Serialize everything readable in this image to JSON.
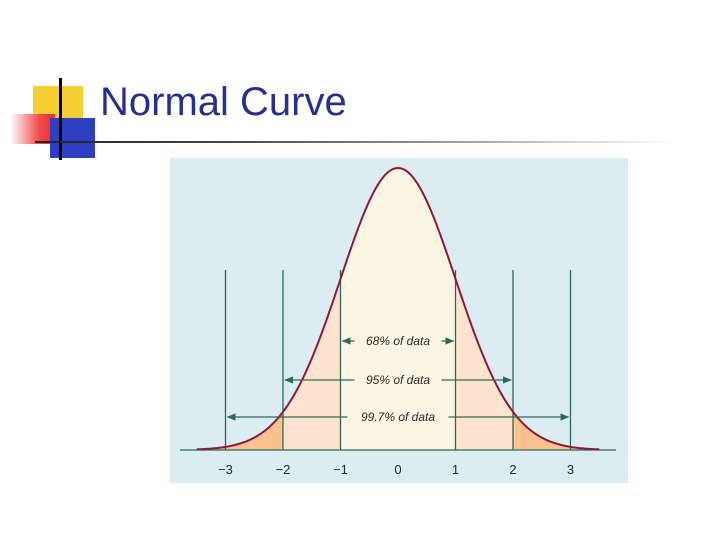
{
  "slide": {
    "title": "Normal Curve"
  },
  "diagram": {
    "bands": [
      {
        "label": "68% of data",
        "from": -1,
        "to": 1
      },
      {
        "label": "95% of data",
        "from": -2,
        "to": 2
      },
      {
        "label": "99.7% of data",
        "from": -3,
        "to": 3
      }
    ],
    "ticks": [
      "−3",
      "−2",
      "−1",
      "0",
      "1",
      "2",
      "3"
    ],
    "colors": {
      "background": "#dcecf3",
      "curve": "#8b1a3a",
      "inner_fill": "#fdf5e3",
      "middle_fill": "#fde3d0",
      "outer_fill": "#fbc28f",
      "lines": "#2c6b55",
      "text": "#2a2a2a",
      "title": "#27308f"
    }
  }
}
